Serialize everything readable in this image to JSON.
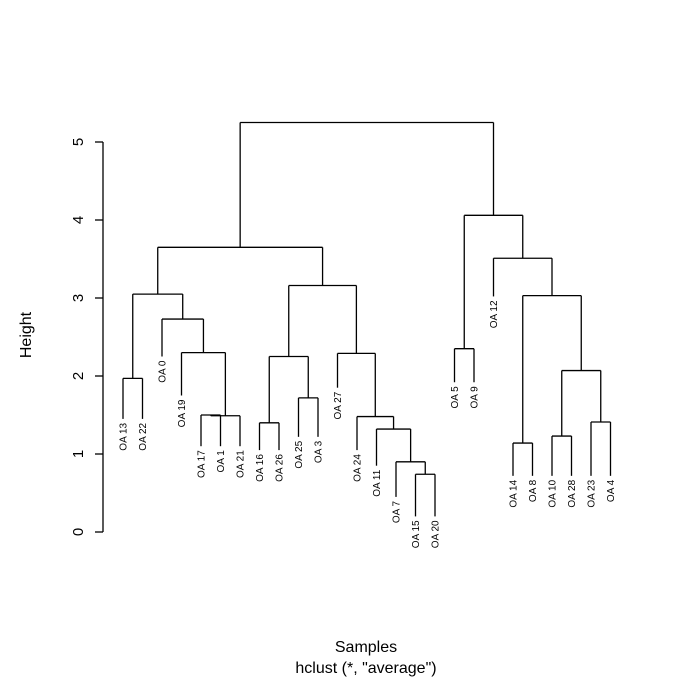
{
  "chart_data": {
    "type": "dendrogram",
    "xlabel": "Samples",
    "subtitle": "hclust (*, \"average\")",
    "ylabel": "Height",
    "ylim": [
      0,
      5.5
    ],
    "yticks": [
      0,
      1,
      2,
      3,
      4,
      5
    ],
    "leaves": [
      {
        "label": "OA 13",
        "height": 1.45
      },
      {
        "label": "OA 22",
        "height": 1.45
      },
      {
        "label": "OA 0",
        "height": 2.25
      },
      {
        "label": "OA 19",
        "height": 1.75
      },
      {
        "label": "OA 17",
        "height": 1.1
      },
      {
        "label": "OA 1",
        "height": 1.1
      },
      {
        "label": "OA 21",
        "height": 1.1
      },
      {
        "label": "OA 16",
        "height": 1.05
      },
      {
        "label": "OA 26",
        "height": 1.05
      },
      {
        "label": "OA 25",
        "height": 1.22
      },
      {
        "label": "OA 3",
        "height": 1.22
      },
      {
        "label": "OA 27",
        "height": 1.85
      },
      {
        "label": "OA 24",
        "height": 1.05
      },
      {
        "label": "OA 11",
        "height": 0.85
      },
      {
        "label": "OA 7",
        "height": 0.45
      },
      {
        "label": "OA 15",
        "height": 0.2
      },
      {
        "label": "OA 20",
        "height": 0.2
      },
      {
        "label": "OA 5",
        "height": 1.92
      },
      {
        "label": "OA 9",
        "height": 1.92
      },
      {
        "label": "OA 12",
        "height": 3.02
      },
      {
        "label": "OA 14",
        "height": 0.72
      },
      {
        "label": "OA 8",
        "height": 0.72
      },
      {
        "label": "OA 10",
        "height": 0.72
      },
      {
        "label": "OA 28",
        "height": 0.72
      },
      {
        "label": "OA 23",
        "height": 0.72
      },
      {
        "label": "OA 4",
        "height": 0.72
      }
    ],
    "merges": [
      {
        "a": "OA 13",
        "b": "OA 22",
        "height": 1.97
      },
      {
        "a": "OA 17",
        "b": "OA 1",
        "height": 1.5
      },
      {
        "a": "m2",
        "b": "OA 21",
        "height": 1.49
      },
      {
        "a": "OA 19",
        "b": "m3",
        "height": 2.3
      },
      {
        "a": "OA 0",
        "b": "m4",
        "height": 2.73
      },
      {
        "a": "m1",
        "b": "m5",
        "height": 3.05
      },
      {
        "a": "OA 16",
        "b": "OA 26",
        "height": 1.4
      },
      {
        "a": "OA 25",
        "b": "OA 3",
        "height": 1.72
      },
      {
        "a": "m7",
        "b": "m8",
        "height": 2.25
      },
      {
        "a": "OA 15",
        "b": "OA 20",
        "height": 0.74
      },
      {
        "a": "OA 7",
        "b": "m10",
        "height": 0.9
      },
      {
        "a": "OA 11",
        "b": "m11",
        "height": 1.32
      },
      {
        "a": "OA 24",
        "b": "m12",
        "height": 1.48
      },
      {
        "a": "OA 27",
        "b": "m13",
        "height": 2.29
      },
      {
        "a": "m9",
        "b": "m14",
        "height": 3.16
      },
      {
        "a": "m6",
        "b": "m15",
        "height": 3.65
      },
      {
        "a": "OA 5",
        "b": "OA 9",
        "height": 2.35
      },
      {
        "a": "OA 14",
        "b": "OA 8",
        "height": 1.14
      },
      {
        "a": "OA 10",
        "b": "OA 28",
        "height": 1.23
      },
      {
        "a": "OA 23",
        "b": "OA 4",
        "height": 1.41
      },
      {
        "a": "m19",
        "b": "m20",
        "height": 2.07
      },
      {
        "a": "m18",
        "b": "m21",
        "height": 3.03
      },
      {
        "a": "OA 12",
        "b": "m22",
        "height": 3.51
      },
      {
        "a": "m17",
        "b": "m23",
        "height": 4.06
      },
      {
        "a": "m16",
        "b": "m24",
        "height": 5.25
      }
    ]
  }
}
